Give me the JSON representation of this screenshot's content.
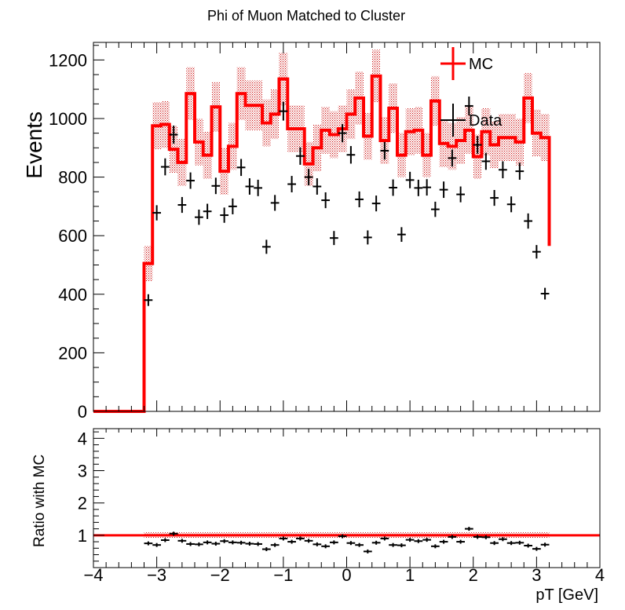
{
  "title": "Phi of Muon Matched to Cluster",
  "colors": {
    "mc": "#ff0000",
    "data": "#000000",
    "band": "#b40000"
  },
  "chart_data": [
    {
      "type": "line",
      "panel": "main",
      "ylabel": "Events",
      "xlim": [
        -4,
        4
      ],
      "ylim": [
        0,
        1260
      ],
      "yticks": [
        0,
        200,
        400,
        600,
        800,
        1000,
        1200
      ],
      "legend": {
        "position": "top-right",
        "entries": [
          "MC",
          "Data"
        ]
      },
      "mc_bin_edges": [
        -3.2,
        -3.067,
        -2.933,
        -2.8,
        -2.667,
        -2.533,
        -2.4,
        -2.267,
        -2.133,
        -2.0,
        -1.867,
        -1.733,
        -1.6,
        -1.467,
        -1.333,
        -1.2,
        -1.067,
        -0.933,
        -0.8,
        -0.667,
        -0.533,
        -0.4,
        -0.267,
        -0.133,
        0.0,
        0.133,
        0.267,
        0.4,
        0.533,
        0.667,
        0.8,
        0.933,
        1.067,
        1.2,
        1.333,
        1.467,
        1.6,
        1.733,
        1.867,
        2.0,
        2.133,
        2.267,
        2.4,
        2.533,
        2.667,
        2.8,
        2.933,
        3.067,
        3.2
      ],
      "series": [
        {
          "name": "MC",
          "values": [
            505,
            975,
            980,
            895,
            850,
            1085,
            920,
            875,
            1040,
            820,
            905,
            1085,
            1045,
            1045,
            985,
            1015,
            1135,
            965,
            965,
            845,
            900,
            960,
            945,
            965,
            1015,
            1070,
            940,
            1145,
            925,
            1035,
            875,
            955,
            960,
            875,
            1060,
            915,
            905,
            925,
            960,
            870,
            955,
            910,
            935,
            935,
            920,
            1070,
            950,
            935,
            565
          ],
          "error_band": [
            60,
            80,
            80,
            80,
            80,
            90,
            80,
            80,
            85,
            80,
            80,
            90,
            85,
            85,
            80,
            85,
            90,
            80,
            80,
            75,
            80,
            80,
            80,
            80,
            85,
            90,
            80,
            90,
            80,
            85,
            75,
            80,
            80,
            75,
            85,
            80,
            80,
            80,
            80,
            75,
            80,
            80,
            80,
            80,
            80,
            85,
            80,
            80,
            60
          ]
        },
        {
          "name": "Data",
          "x": [
            -3.133,
            -3.0,
            -2.867,
            -2.733,
            -2.6,
            -2.467,
            -2.333,
            -2.2,
            -2.067,
            -1.933,
            -1.8,
            -1.667,
            -1.533,
            -1.4,
            -1.267,
            -1.133,
            -1.0,
            -0.867,
            -0.733,
            -0.6,
            -0.467,
            -0.333,
            -0.2,
            -0.067,
            0.067,
            0.2,
            0.333,
            0.467,
            0.6,
            0.733,
            0.867,
            1.0,
            1.133,
            1.267,
            1.4,
            1.533,
            1.667,
            1.8,
            1.933,
            2.067,
            2.2,
            2.333,
            2.467,
            2.6,
            2.733,
            2.867,
            3.0,
            3.133
          ],
          "values": [
            380,
            678,
            835,
            945,
            705,
            788,
            663,
            683,
            770,
            670,
            700,
            833,
            768,
            763,
            562,
            712,
            1025,
            776,
            872,
            800,
            768,
            721,
            592,
            950,
            876,
            724,
            594,
            710,
            890,
            764,
            604,
            790,
            763,
            765,
            690,
            757,
            865,
            741,
            1043,
            910,
            854,
            729,
            825,
            707,
            820,
            650,
            545,
            402
          ],
          "errors": [
            20,
            26,
            29,
            31,
            27,
            28,
            26,
            26,
            28,
            26,
            27,
            29,
            28,
            28,
            24,
            27,
            32,
            28,
            30,
            28,
            28,
            27,
            24,
            31,
            30,
            27,
            24,
            27,
            30,
            28,
            25,
            28,
            28,
            28,
            26,
            28,
            29,
            27,
            32,
            30,
            29,
            27,
            29,
            27,
            29,
            26,
            23,
            20
          ]
        }
      ]
    },
    {
      "type": "scatter",
      "panel": "ratio",
      "xlabel": "pT [GeV]",
      "ylabel": "Ratio with MC",
      "xlim": [
        -4,
        4
      ],
      "ylim": [
        0,
        4.3
      ],
      "yticks": [
        1,
        2,
        3,
        4
      ],
      "xticks": [
        -4,
        -3,
        -2,
        -1,
        0,
        1,
        2,
        3,
        4
      ],
      "xtick_labels": [
        "−4",
        "−3",
        "−2",
        "−1",
        "0",
        "1",
        "2",
        "3",
        "4"
      ],
      "reference_line": 1,
      "x": [
        -3.133,
        -3.0,
        -2.867,
        -2.733,
        -2.6,
        -2.467,
        -2.333,
        -2.2,
        -2.067,
        -1.933,
        -1.8,
        -1.667,
        -1.533,
        -1.4,
        -1.267,
        -1.133,
        -1.0,
        -0.867,
        -0.733,
        -0.6,
        -0.467,
        -0.333,
        -0.2,
        -0.067,
        0.067,
        0.2,
        0.333,
        0.467,
        0.6,
        0.733,
        0.867,
        1.0,
        1.133,
        1.267,
        1.4,
        1.533,
        1.667,
        1.8,
        1.933,
        2.067,
        2.2,
        2.333,
        2.467,
        2.6,
        2.733,
        2.867,
        3.0,
        3.133
      ],
      "values": [
        0.75,
        0.7,
        0.85,
        1.05,
        0.83,
        0.73,
        0.72,
        0.78,
        0.74,
        0.82,
        0.78,
        0.77,
        0.74,
        0.73,
        0.57,
        0.7,
        0.9,
        0.8,
        0.9,
        0.83,
        0.72,
        0.66,
        0.78,
        0.97,
        0.76,
        0.7,
        0.5,
        0.77,
        0.9,
        0.7,
        0.69,
        0.86,
        0.82,
        0.86,
        0.66,
        0.8,
        0.95,
        0.8,
        1.2,
        0.95,
        0.94,
        0.76,
        0.88,
        0.76,
        0.77,
        0.68,
        0.58,
        0.71
      ],
      "band_halfwidth": 0.09
    }
  ]
}
